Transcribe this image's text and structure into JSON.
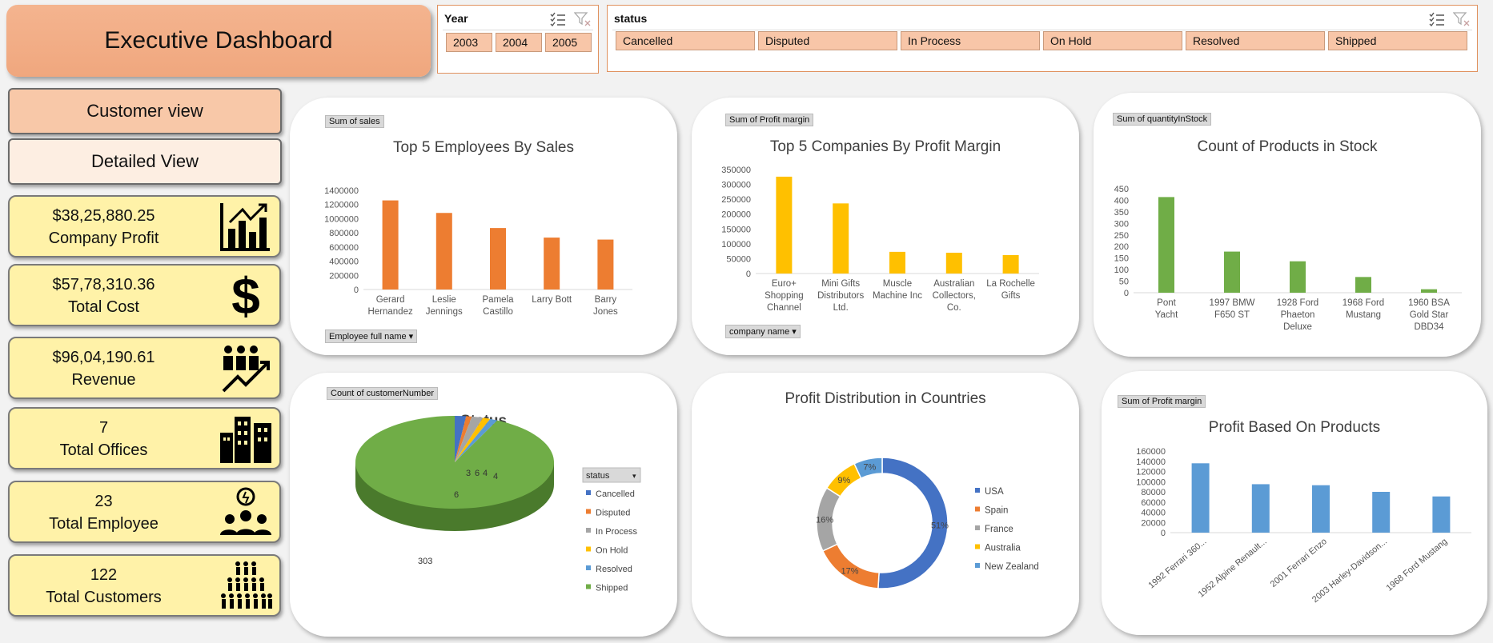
{
  "title": "Executive Dashboard",
  "year_slicer": {
    "header": "Year",
    "items": [
      "2003",
      "2004",
      "2005"
    ]
  },
  "status_slicer": {
    "header": "status",
    "items": [
      "Cancelled",
      "Disputed",
      "In Process",
      "On Hold",
      "Resolved",
      "Shipped"
    ]
  },
  "nav": {
    "customer_view": "Customer view",
    "detailed_view": "Detailed View"
  },
  "kpis": [
    {
      "value": "$38,25,880.25",
      "label": "Company Profit",
      "icon": "bar-chart-growth-icon"
    },
    {
      "value": "$57,78,310.36",
      "label": "Total Cost",
      "icon": "dollar-icon"
    },
    {
      "value": "$96,04,190.61",
      "label": "Revenue",
      "icon": "people-growth-icon"
    },
    {
      "value": "7",
      "label": "Total Offices",
      "icon": "buildings-icon"
    },
    {
      "value": "23",
      "label": "Total Employee",
      "icon": "team-idea-icon"
    },
    {
      "value": "122",
      "label": "Total Customers",
      "icon": "crowd-icon"
    }
  ],
  "colors": {
    "orange": "#ed7d31",
    "gold": "#ffc000",
    "green": "#70ad47",
    "blue": "#5b9bd5",
    "navy": "#4472c4",
    "gray": "#a5a5a5"
  },
  "chart_data": [
    {
      "type": "bar",
      "field_tag": "Sum of sales",
      "filter_tag": "Employee full name",
      "title": "Top 5 Employees By Sales",
      "categories": [
        "Gerard Hernandez",
        "Leslie Jennings",
        "Pamela Castillo",
        "Larry Bott",
        "Barry Jones"
      ],
      "values": [
        1258000,
        1081000,
        868000,
        733000,
        705000
      ],
      "yticks": [
        "0",
        "200000",
        "400000",
        "600000",
        "800000",
        "1000000",
        "1200000",
        "1400000"
      ],
      "ylim": [
        0,
        1400000
      ],
      "color": "#ed7d31"
    },
    {
      "type": "bar",
      "field_tag": "Sum of Profit margin",
      "filter_tag": "company name",
      "title": "Top 5 Companies By Profit Margin",
      "categories": [
        "Euro+ Shopping Channel",
        "Mini Gifts Distributors Ltd.",
        "Muscle Machine Inc",
        "Australian Collectors, Co.",
        "La Rochelle Gifts"
      ],
      "values": [
        326000,
        236000,
        73000,
        70000,
        62000
      ],
      "yticks": [
        "0",
        "50000",
        "100000",
        "150000",
        "200000",
        "250000",
        "300000",
        "350000"
      ],
      "ylim": [
        0,
        350000
      ],
      "color": "#ffc000"
    },
    {
      "type": "bar",
      "field_tag": "Sum of quantityInStock",
      "title": "Count of Products in Stock",
      "categories": [
        "Pont Yacht",
        "1997 BMW F650 ST",
        "1928 Ford Phaeton Deluxe",
        "1968 Ford Mustang",
        "1960 BSA Gold Star DBD34"
      ],
      "values": [
        414,
        178,
        136,
        68,
        15
      ],
      "yticks": [
        "0",
        "50",
        "100",
        "150",
        "200",
        "250",
        "300",
        "350",
        "400",
        "450"
      ],
      "ylim": [
        0,
        450
      ],
      "color": "#70ad47"
    },
    {
      "type": "pie",
      "field_tag": "Count of customerNumber",
      "title": "Status",
      "legend_header": "status",
      "slices": [
        {
          "name": "Cancelled",
          "value": 6,
          "color": "#4472c4"
        },
        {
          "name": "Disputed",
          "value": 3,
          "color": "#ed7d31"
        },
        {
          "name": "In Process",
          "value": 6,
          "color": "#a5a5a5"
        },
        {
          "name": "On Hold",
          "value": 4,
          "color": "#ffc000"
        },
        {
          "name": "Resolved",
          "value": 4,
          "color": "#5b9bd5"
        },
        {
          "name": "Shipped",
          "value": 303,
          "color": "#70ad47"
        }
      ],
      "outside_labels": [
        "3",
        "6",
        "4",
        "4"
      ],
      "inside_small_label": "6",
      "main_label": "303"
    },
    {
      "type": "pie",
      "title": "Profit Distribution in Countries",
      "slices": [
        {
          "name": "USA",
          "value": 51,
          "label": "51%",
          "color": "#4472c4"
        },
        {
          "name": "Spain",
          "value": 17,
          "label": "17%",
          "color": "#ed7d31"
        },
        {
          "name": "France",
          "value": 16,
          "label": "16%",
          "color": "#a5a5a5"
        },
        {
          "name": "Australia",
          "value": 9,
          "label": "9%",
          "color": "#ffc000"
        },
        {
          "name": "New Zealand",
          "value": 7,
          "label": "7%",
          "color": "#5b9bd5"
        }
      ]
    },
    {
      "type": "bar",
      "field_tag": "Sum of Profit margin",
      "title": "Profit Based On Products",
      "categories": [
        "1992 Ferrari 360...",
        "1952 Alpine Renault...",
        "2001 Ferrari Enzo",
        "2003 Harley-Davidson...",
        "1968 Ford Mustang"
      ],
      "values": [
        136000,
        95000,
        93000,
        80000,
        71000
      ],
      "yticks": [
        "0",
        "20000",
        "40000",
        "60000",
        "80000",
        "100000",
        "120000",
        "140000",
        "160000"
      ],
      "ylim": [
        0,
        160000
      ],
      "color": "#5b9bd5"
    }
  ]
}
